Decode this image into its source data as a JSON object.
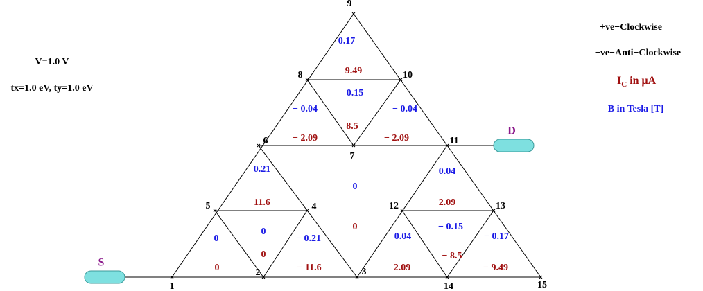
{
  "bias": {
    "voltage": "V=1.0 V",
    "hopping": "tx=1.0 eV, ty=1.0 eV"
  },
  "legend": {
    "clockwise": "+ve−Clockwise",
    "anticlockwise": "−ve−Anti−Clockwise",
    "current": {
      "symbol": "I",
      "subscript": "C",
      "unit": "in  μA"
    },
    "field": "B in Tesla [T]"
  },
  "leads": {
    "source": "S",
    "drain": "D"
  },
  "nodes": [
    "1",
    "2",
    "3",
    "4",
    "5",
    "6",
    "7",
    "8",
    "9",
    "10",
    "11",
    "12",
    "13",
    "14",
    "15"
  ],
  "loops": [
    {
      "field": "0.17",
      "current": "9.49"
    },
    {
      "field": "0.15",
      "current": "8.5"
    },
    {
      "field": "− 0.04",
      "current": "− 2.09"
    },
    {
      "field": "− 0.04",
      "current": "− 2.09"
    },
    {
      "field": "0.21",
      "current": "11.6"
    },
    {
      "field": "0",
      "current": "0"
    },
    {
      "field": "0.04",
      "current": "2.09"
    },
    {
      "field": "0",
      "current": "0"
    },
    {
      "field": "0",
      "current": "0"
    },
    {
      "field": "− 0.21",
      "current": "− 11.6"
    },
    {
      "field": "0.04",
      "current": "2.09"
    },
    {
      "field": "− 0.15",
      "current": "− 8.5"
    },
    {
      "field": "− 0.17",
      "current": "− 9.49"
    }
  ]
}
